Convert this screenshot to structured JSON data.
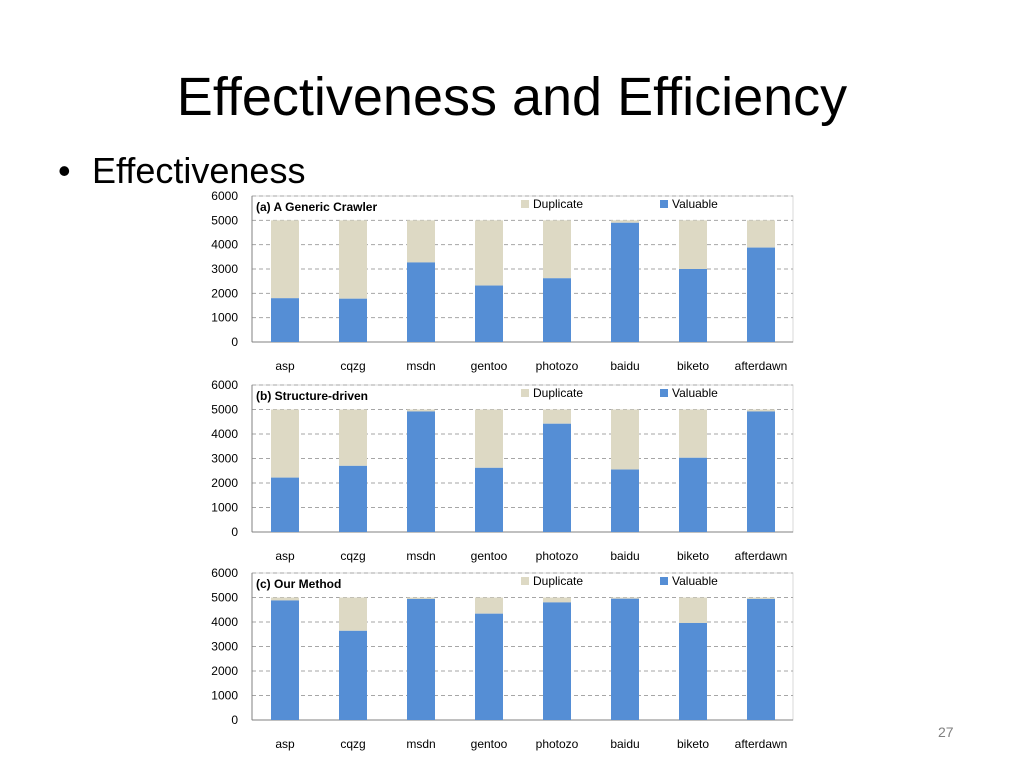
{
  "slide": {
    "title": "Effectiveness and Efficiency",
    "bullet": "Effectiveness",
    "page_number": "27"
  },
  "colors": {
    "duplicate": "#ddd9c4",
    "valuable": "#558ed5",
    "grid": "#a6a6a6",
    "axis": "#808080"
  },
  "chart_data": [
    {
      "type": "bar",
      "stacked": true,
      "title": "(a) A Generic Crawler",
      "categories": [
        "asp",
        "cqzg",
        "msdn",
        "gentoo",
        "photozo",
        "baidu",
        "biketo",
        "afterdawn"
      ],
      "ylim": [
        0,
        6000
      ],
      "yticks": [
        0,
        1000,
        2000,
        3000,
        4000,
        5000,
        6000
      ],
      "grid": true,
      "legend_position": "top-right",
      "series": [
        {
          "name": "Valuable",
          "values": [
            1800,
            1780,
            3270,
            2320,
            2620,
            4900,
            3000,
            3880
          ]
        },
        {
          "name": "Duplicate",
          "values": [
            3200,
            3220,
            1730,
            2680,
            2380,
            100,
            2000,
            1120
          ]
        }
      ]
    },
    {
      "type": "bar",
      "stacked": true,
      "title": "(b) Structure-driven",
      "categories": [
        "asp",
        "cqzg",
        "msdn",
        "gentoo",
        "photozo",
        "baidu",
        "biketo",
        "afterdawn"
      ],
      "ylim": [
        0,
        6000
      ],
      "yticks": [
        0,
        1000,
        2000,
        3000,
        4000,
        5000,
        6000
      ],
      "grid": true,
      "legend_position": "top-right",
      "series": [
        {
          "name": "Valuable",
          "values": [
            2220,
            2700,
            4920,
            2620,
            4420,
            2550,
            3030,
            4920
          ]
        },
        {
          "name": "Duplicate",
          "values": [
            2780,
            2300,
            80,
            2380,
            580,
            2450,
            1970,
            80
          ]
        }
      ]
    },
    {
      "type": "bar",
      "stacked": true,
      "title": "(c) Our Method",
      "categories": [
        "asp",
        "cqzg",
        "msdn",
        "gentoo",
        "photozo",
        "baidu",
        "biketo",
        "afterdawn"
      ],
      "ylim": [
        0,
        6000
      ],
      "yticks": [
        0,
        1000,
        2000,
        3000,
        4000,
        5000,
        6000
      ],
      "grid": true,
      "legend_position": "top-right",
      "series": [
        {
          "name": "Valuable",
          "values": [
            4880,
            3640,
            4940,
            4340,
            4800,
            4950,
            3960,
            4940
          ]
        },
        {
          "name": "Duplicate",
          "values": [
            120,
            1360,
            60,
            660,
            200,
            50,
            1040,
            60
          ]
        }
      ]
    }
  ]
}
